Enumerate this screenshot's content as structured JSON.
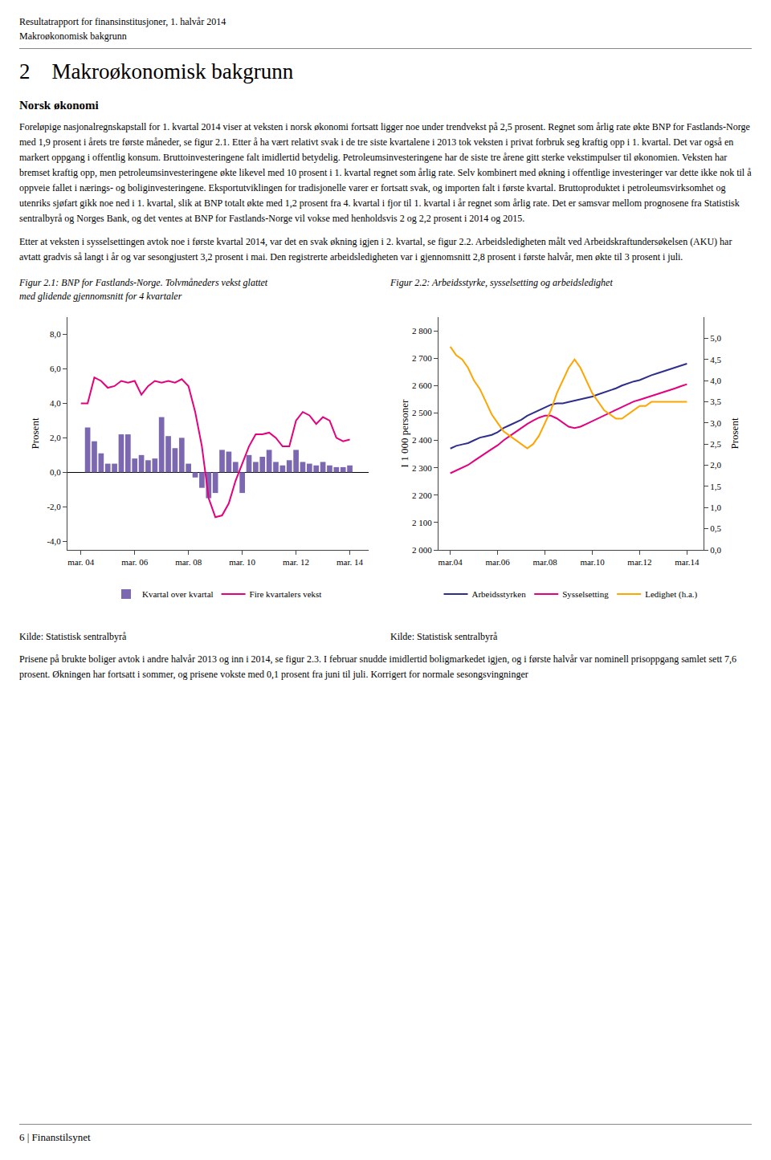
{
  "annotations": [
    "Resultatrapport for finansinstitusjoner, 1. halvår 2014",
    "Makroøkonomisk bakgrunn",
    "2    Makroøkonomisk bakgrunn",
    "Norsk økonomi",
    "Foreløpige nasjonalregnskapstall for 1. kvartal 2014 viser at veksten i norsk økonomi fortsatt ligger noe under trendvekst på 2,5 prosent. Regnet som årlig rate økte BNP for Fastlands-Norge med 1,9 prosent i årets tre første måneder, se figur 2.1. Etter å ha vært relativt svak i de tre siste kvartalene i 2013 tok veksten i privat forbruk seg kraftig opp i 1. kvartal. Det var også en markert oppgang i offentlig konsum. Bruttoinvesteringene falt imidlertid betydelig. Petroleumsinvesteringene har de siste tre årene gitt sterke vekstimpulser til økonomien. Veksten har bremset kraftig opp, men petroleumsinvesteringene økte likevel med 10 prosent i 1. kvartal regnet som årlig rate. Selv kombinert med økning i offentlige investeringer var dette ikke nok til å oppveie fallet i nærings- og boliginvesteringene. Eksportutviklingen for tradisjonelle varer er fortsatt svak, og importen falt i første kvartal. Bruttoproduktet i petroleumsvirksomhet og utenriks sjøfart gikk noe ned i 1. kvartal, slik at BNP totalt økte med 1,2 prosent fra 4. kvartal i fjor til 1. kvartal i år regnet som årlig rate. Det er samsvar mellom prognosene fra Statistisk sentralbyrå og Norges Bank, og det ventes at BNP for Fastlands-Norge vil vokse med henholdsvis 2 og 2,2 prosent i 2014 og 2015.",
    "Etter at veksten i sysselsettingen avtok noe i første kvartal 2014, var det en svak økning igjen i 2. kvartal, se figur 2.2. Arbeidsledigheten målt ved Arbeidskraftundersøkelsen (AKU) har avtatt gradvis så langt i år og var sesongjustert 3,2 prosent i mai. Den registrerte arbeidsledigheten var i gjennomsnitt 2,8 prosent i første halvår, men økte til 3 prosent i juli.",
    "Prisene på brukte boliger avtok i andre halvår 2013 og inn i 2014, se figur 2.3. I februar snudde imidlertid boligmarkedet igjen, og i første halvår var nominell prisoppgang samlet sett 7,6 prosent. Økningen har fortsatt i sommer, og prisene vokste med 0,1 prosent fra juni til juli. Korrigert for normale sesongsvingninger",
    "6 | Finanstilsynet"
  ],
  "chart_data": [
    {
      "type": "bar",
      "title": "Figur 2.1: BNP for Fastlands-Norge. Tolvmåneders vekst glattet\nmed glidende gjennomsnitt for 4 kvartaler",
      "ylabel": "Prosent",
      "xlim": [
        2003.5,
        2014.7
      ],
      "ylim": [
        -4.5,
        9.0
      ],
      "xticks": [
        {
          "value": 2004,
          "label": "mar. 04"
        },
        {
          "value": 2006,
          "label": "mar. 06"
        },
        {
          "value": 2008,
          "label": "mar. 08"
        },
        {
          "value": 2010,
          "label": "mar. 10"
        },
        {
          "value": 2012,
          "label": "mar. 12"
        },
        {
          "value": 2014,
          "label": "mar. 14"
        }
      ],
      "yticks": [
        {
          "value": -4.0,
          "label": "-4,0"
        },
        {
          "value": -2.0,
          "label": "-2,0"
        },
        {
          "value": 0.0,
          "label": "0,0"
        },
        {
          "value": 2.0,
          "label": "2,0"
        },
        {
          "value": 4.0,
          "label": "4,0"
        },
        {
          "value": 6.0,
          "label": "6,0"
        },
        {
          "value": 8.0,
          "label": "8,0"
        }
      ],
      "grid": false,
      "legend": "bottom",
      "annotations": [
        "Kilde: Statistisk sentralbyrå"
      ],
      "series": [
        {
          "name": "Kvartal over kvartal",
          "type": "bar",
          "color": "#7B68B0",
          "x": [
            2004.25,
            2004.5,
            2004.75,
            2005.0,
            2005.25,
            2005.5,
            2005.75,
            2006.0,
            2006.25,
            2006.5,
            2006.75,
            2007.0,
            2007.25,
            2007.5,
            2007.75,
            2008.0,
            2008.25,
            2008.5,
            2008.75,
            2009.0,
            2009.25,
            2009.5,
            2009.75,
            2010.0,
            2010.25,
            2010.5,
            2010.75,
            2011.0,
            2011.25,
            2011.5,
            2011.75,
            2012.0,
            2012.25,
            2012.5,
            2012.75,
            2013.0,
            2013.25,
            2013.5,
            2013.75,
            2014.0
          ],
          "values": [
            2.6,
            1.8,
            1.1,
            0.5,
            0.5,
            2.2,
            2.2,
            0.8,
            1.0,
            0.7,
            0.8,
            3.2,
            2.1,
            1.4,
            2.0,
            0.5,
            -0.3,
            -0.9,
            -1.5,
            -1.2,
            1.3,
            1.2,
            0.6,
            -1.2,
            1.0,
            0.6,
            0.9,
            1.3,
            0.6,
            0.4,
            0.7,
            1.3,
            0.6,
            0.5,
            0.4,
            0.6,
            0.4,
            0.3,
            0.3,
            0.4
          ]
        },
        {
          "name": "Fire kvartalers vekst",
          "type": "line",
          "color": "#E5007E",
          "x": [
            2004.0,
            2004.25,
            2004.5,
            2004.75,
            2005.0,
            2005.25,
            2005.5,
            2005.75,
            2006.0,
            2006.25,
            2006.5,
            2006.75,
            2007.0,
            2007.25,
            2007.5,
            2007.75,
            2008.0,
            2008.25,
            2008.5,
            2008.75,
            2009.0,
            2009.25,
            2009.5,
            2009.75,
            2010.0,
            2010.25,
            2010.5,
            2010.75,
            2011.0,
            2011.25,
            2011.5,
            2011.75,
            2012.0,
            2012.25,
            2012.5,
            2012.75,
            2013.0,
            2013.25,
            2013.5,
            2013.75,
            2014.0
          ],
          "values": [
            4.0,
            4.0,
            5.5,
            5.3,
            4.9,
            5.0,
            5.3,
            5.2,
            5.3,
            4.5,
            5.0,
            5.3,
            5.2,
            5.3,
            5.2,
            5.4,
            5.0,
            3.5,
            1.5,
            -1.5,
            -2.6,
            -2.5,
            -1.8,
            -0.5,
            0.5,
            1.5,
            2.2,
            2.2,
            2.3,
            2.0,
            1.5,
            1.5,
            3.0,
            3.5,
            3.3,
            2.8,
            3.2,
            3.0,
            2.0,
            1.8,
            1.9
          ]
        }
      ]
    },
    {
      "type": "line",
      "title": "Figur 2.2: Arbeidsstyrke, sysselsetting og arbeidsledighet",
      "ylabel": "I 1 000 personer",
      "y2label": "Prosent",
      "x": [
        2004.0,
        2004.25,
        2004.5,
        2004.75,
        2005.0,
        2005.25,
        2005.5,
        2005.75,
        2006.0,
        2006.25,
        2006.5,
        2006.75,
        2007.0,
        2007.25,
        2007.5,
        2007.75,
        2008.0,
        2008.25,
        2008.5,
        2008.75,
        2009.0,
        2009.25,
        2009.5,
        2009.75,
        2010.0,
        2010.25,
        2010.5,
        2010.75,
        2011.0,
        2011.25,
        2011.5,
        2011.75,
        2012.0,
        2012.25,
        2012.5,
        2012.75,
        2013.0,
        2013.25,
        2013.5,
        2013.75,
        2014.0
      ],
      "xlim": [
        2003.5,
        2014.7
      ],
      "ylim": [
        2000,
        2850
      ],
      "y2lim": [
        0.0,
        5.5
      ],
      "xticks": [
        {
          "value": 2004,
          "label": "mar.04"
        },
        {
          "value": 2006,
          "label": "mar.06"
        },
        {
          "value": 2008,
          "label": "mar.08"
        },
        {
          "value": 2010,
          "label": "mar.10"
        },
        {
          "value": 2012,
          "label": "mar.12"
        },
        {
          "value": 2014,
          "label": "mar.14"
        }
      ],
      "yticks": [
        {
          "value": 2000,
          "label": "2 000"
        },
        {
          "value": 2100,
          "label": "2 100"
        },
        {
          "value": 2200,
          "label": "2 200"
        },
        {
          "value": 2300,
          "label": "2 300"
        },
        {
          "value": 2400,
          "label": "2 400"
        },
        {
          "value": 2500,
          "label": "2 500"
        },
        {
          "value": 2600,
          "label": "2 600"
        },
        {
          "value": 2700,
          "label": "2 700"
        },
        {
          "value": 2800,
          "label": "2 800"
        }
      ],
      "y2ticks": [
        {
          "value": 0.0,
          "label": "0,0"
        },
        {
          "value": 0.5,
          "label": "0,5"
        },
        {
          "value": 1.0,
          "label": "1,0"
        },
        {
          "value": 1.5,
          "label": "1,5"
        },
        {
          "value": 2.0,
          "label": "2,0"
        },
        {
          "value": 2.5,
          "label": "2,5"
        },
        {
          "value": 3.0,
          "label": "3,0"
        },
        {
          "value": 3.5,
          "label": "3,5"
        },
        {
          "value": 4.0,
          "label": "4,0"
        },
        {
          "value": 4.5,
          "label": "4,5"
        },
        {
          "value": 5.0,
          "label": "5,0"
        }
      ],
      "grid": false,
      "legend": "bottom",
      "annotations": [
        "Kilde: Statistisk sentralbyrå"
      ],
      "series": [
        {
          "name": "Arbeidsstyrken",
          "color": "#2E2E8B",
          "values": [
            2370,
            2380,
            2385,
            2390,
            2400,
            2410,
            2415,
            2420,
            2430,
            2445,
            2455,
            2465,
            2475,
            2490,
            2500,
            2510,
            2520,
            2530,
            2535,
            2535,
            2540,
            2545,
            2550,
            2555,
            2560,
            2568,
            2575,
            2582,
            2590,
            2600,
            2608,
            2615,
            2620,
            2630,
            2638,
            2645,
            2652,
            2658,
            2665,
            2672,
            2680
          ]
        },
        {
          "name": "Sysselsetting",
          "color": "#E5007E",
          "values": [
            2280,
            2290,
            2300,
            2310,
            2325,
            2340,
            2355,
            2368,
            2382,
            2400,
            2415,
            2430,
            2445,
            2460,
            2472,
            2483,
            2490,
            2490,
            2480,
            2465,
            2450,
            2445,
            2450,
            2460,
            2470,
            2480,
            2492,
            2502,
            2512,
            2522,
            2532,
            2542,
            2548,
            2555,
            2560,
            2568,
            2575,
            2582,
            2590,
            2598,
            2605
          ]
        },
        {
          "name": "Ledighet (h.a.)",
          "color": "#FFA500",
          "axis": "y2",
          "values": [
            4.8,
            4.6,
            4.5,
            4.3,
            4.0,
            3.8,
            3.5,
            3.2,
            3.0,
            2.8,
            2.7,
            2.6,
            2.5,
            2.4,
            2.5,
            2.7,
            3.0,
            3.3,
            3.7,
            4.0,
            4.3,
            4.5,
            4.3,
            4.0,
            3.7,
            3.5,
            3.3,
            3.2,
            3.1,
            3.1,
            3.2,
            3.3,
            3.4,
            3.4,
            3.5,
            3.5,
            3.5,
            3.5,
            3.5,
            3.5,
            3.5
          ]
        }
      ]
    }
  ]
}
